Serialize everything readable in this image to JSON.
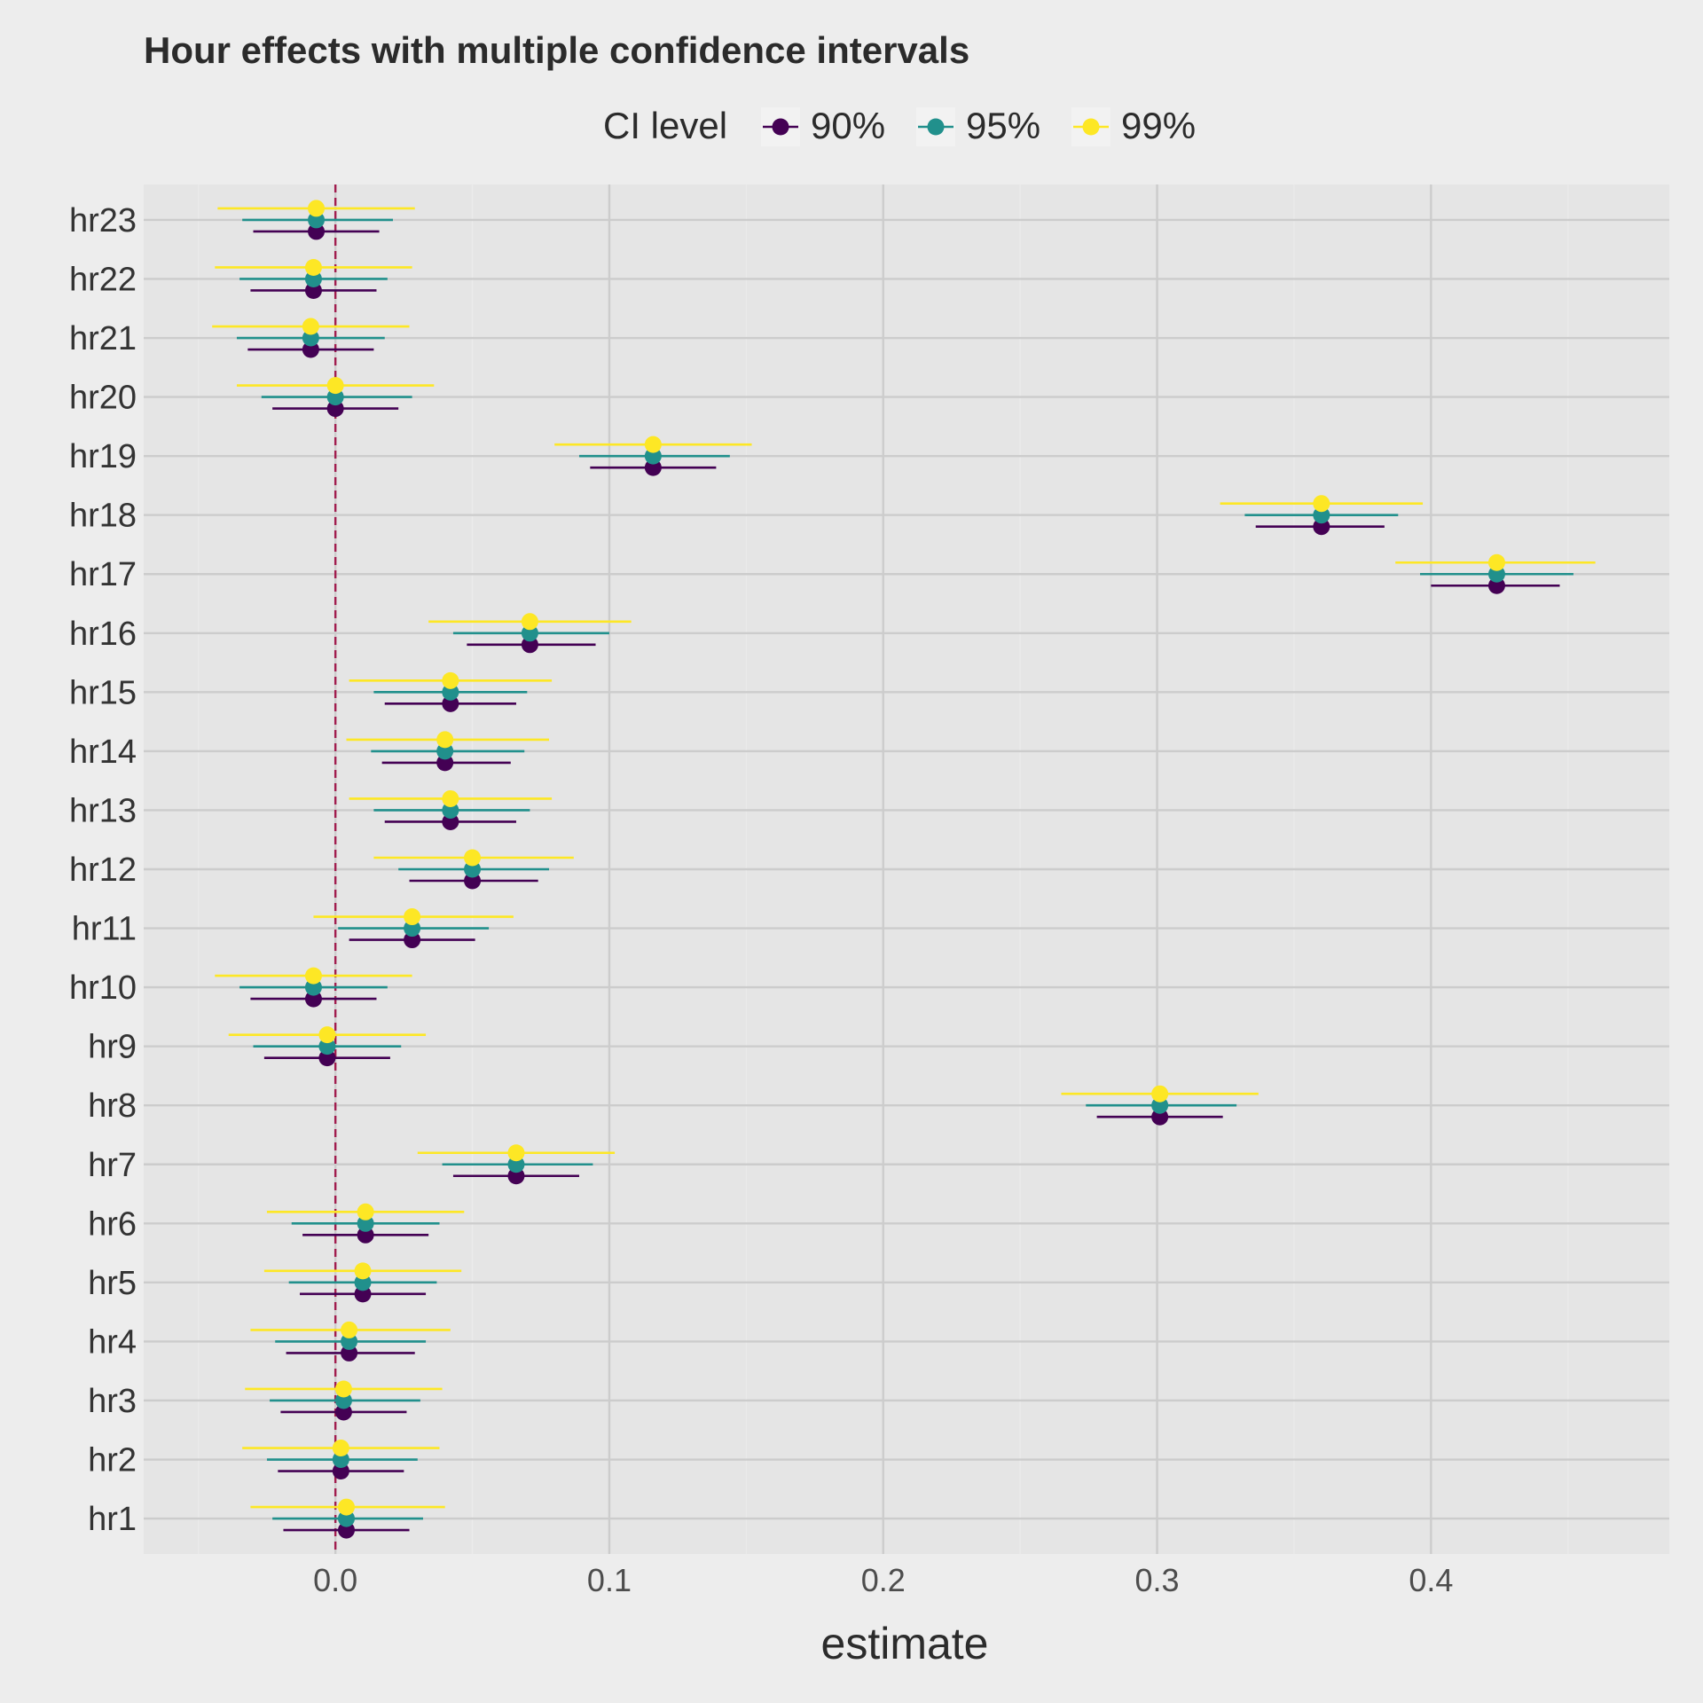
{
  "chart_data": {
    "type": "forest",
    "title": "Hour effects with multiple confidence intervals",
    "xlabel": "estimate",
    "ylabel": "",
    "xlim": [
      -0.07,
      0.487
    ],
    "xticks": [
      0.0,
      0.1,
      0.2,
      0.3,
      0.4
    ],
    "xtick_labels": [
      "0.0",
      "0.1",
      "0.2",
      "0.3",
      "0.4"
    ],
    "reference_line": 0,
    "legend": {
      "title": "CI level",
      "position": "top",
      "entries": [
        "90%",
        "95%",
        "99%"
      ]
    },
    "colors": {
      "90%": "#440154",
      "95%": "#21908C",
      "99%": "#FDE725",
      "reference": "#A11D4E",
      "panel": "#E5E5E5",
      "grid": "#CCCCCC"
    },
    "categories": [
      "hr1",
      "hr2",
      "hr3",
      "hr4",
      "hr5",
      "hr6",
      "hr7",
      "hr8",
      "hr9",
      "hr10",
      "hr11",
      "hr12",
      "hr13",
      "hr14",
      "hr15",
      "hr16",
      "hr17",
      "hr18",
      "hr19",
      "hr20",
      "hr21",
      "hr22",
      "hr23"
    ],
    "estimates": [
      0.004,
      0.002,
      0.003,
      0.005,
      0.01,
      0.011,
      0.066,
      0.301,
      -0.003,
      -0.008,
      0.028,
      0.05,
      0.042,
      0.04,
      0.042,
      0.071,
      0.424,
      0.36,
      0.116,
      0.0,
      -0.009,
      -0.008,
      -0.007
    ],
    "series": [
      {
        "name": "90%",
        "lower": [
          -0.019,
          -0.021,
          -0.02,
          -0.018,
          -0.013,
          -0.012,
          0.043,
          0.278,
          -0.026,
          -0.031,
          0.005,
          0.027,
          0.018,
          0.017,
          0.018,
          0.048,
          0.4,
          0.336,
          0.093,
          -0.023,
          -0.032,
          -0.031,
          -0.03
        ],
        "upper": [
          0.027,
          0.025,
          0.026,
          0.029,
          0.033,
          0.034,
          0.089,
          0.324,
          0.02,
          0.015,
          0.051,
          0.074,
          0.066,
          0.064,
          0.066,
          0.095,
          0.447,
          0.383,
          0.139,
          0.023,
          0.014,
          0.015,
          0.016
        ]
      },
      {
        "name": "95%",
        "lower": [
          -0.023,
          -0.025,
          -0.024,
          -0.022,
          -0.017,
          -0.016,
          0.039,
          0.274,
          -0.03,
          -0.035,
          0.001,
          0.023,
          0.014,
          0.013,
          0.014,
          0.043,
          0.396,
          0.332,
          0.089,
          -0.027,
          -0.036,
          -0.035,
          -0.034
        ],
        "upper": [
          0.032,
          0.03,
          0.031,
          0.033,
          0.037,
          0.038,
          0.094,
          0.329,
          0.024,
          0.019,
          0.056,
          0.078,
          0.071,
          0.069,
          0.07,
          0.1,
          0.452,
          0.388,
          0.144,
          0.028,
          0.018,
          0.019,
          0.021
        ]
      },
      {
        "name": "99%",
        "lower": [
          -0.031,
          -0.034,
          -0.033,
          -0.031,
          -0.026,
          -0.025,
          0.03,
          0.265,
          -0.039,
          -0.044,
          -0.008,
          0.014,
          0.005,
          0.004,
          0.005,
          0.034,
          0.387,
          0.323,
          0.08,
          -0.036,
          -0.045,
          -0.044,
          -0.043
        ],
        "upper": [
          0.04,
          0.038,
          0.039,
          0.042,
          0.046,
          0.047,
          0.102,
          0.337,
          0.033,
          0.028,
          0.065,
          0.087,
          0.079,
          0.078,
          0.079,
          0.108,
          0.46,
          0.397,
          0.152,
          0.036,
          0.027,
          0.028,
          0.029
        ]
      }
    ]
  }
}
